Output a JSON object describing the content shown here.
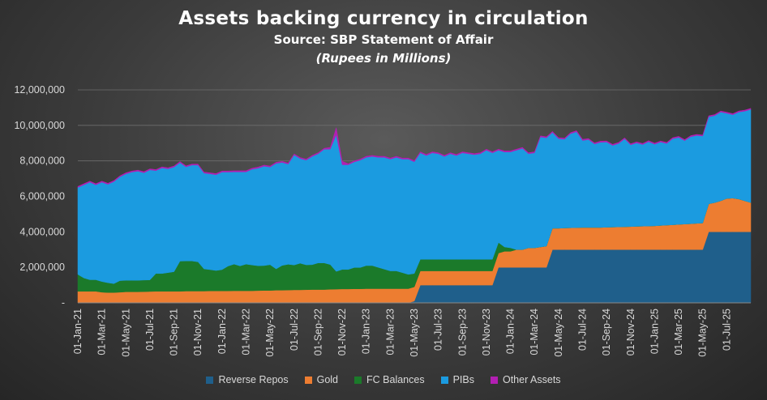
{
  "chart_data": {
    "type": "area",
    "stacked": true,
    "title": "Assets backing currency in circulation",
    "subtitle": "Source: SBP Statement of Affair",
    "unit_note": "(Rupees in Millions)",
    "ylim": [
      0,
      12000000
    ],
    "yticks": [
      0,
      2000000,
      4000000,
      6000000,
      8000000,
      10000000,
      12000000
    ],
    "ytick_labels": [
      "-",
      "2,000,000",
      "4,000,000",
      "6,000,000",
      "8,000,000",
      "10,000,000",
      "12,000,000"
    ],
    "x_range": [
      0,
      56
    ],
    "x_tick_labels": [
      "01-Jan-21",
      "01-Mar-21",
      "01-May-21",
      "01-Jul-21",
      "01-Sep-21",
      "01-Nov-21",
      "01-Jan-22",
      "01-Mar-22",
      "01-May-22",
      "01-Jul-22",
      "01-Sep-22",
      "01-Nov-22",
      "01-Jan-23",
      "01-Mar-23",
      "01-May-23",
      "01-Jul-23",
      "01-Sep-23",
      "01-Nov-23",
      "01-Jan-24",
      "01-Mar-24",
      "01-May-24",
      "01-Jul-24",
      "01-Sep-24",
      "01-Nov-24",
      "01-Jan-25",
      "01-Mar-25",
      "01-May-25",
      "01-Jul-25"
    ],
    "x": [
      0,
      0.5,
      1,
      1.5,
      2,
      2.5,
      3,
      3.5,
      4,
      4.5,
      5,
      5.5,
      6,
      6.5,
      7,
      7.5,
      8,
      8.5,
      9,
      9.5,
      10,
      10.5,
      11,
      11.5,
      12,
      12.5,
      13,
      13.5,
      14,
      14.5,
      15,
      15.5,
      16,
      16.5,
      17,
      17.5,
      18,
      18.5,
      19,
      19.5,
      20,
      20.5,
      21,
      21.5,
      22,
      22.5,
      23,
      23.5,
      24,
      24.5,
      25,
      25.5,
      26,
      26.5,
      27,
      27.5,
      28,
      28.5,
      29,
      29.5,
      30,
      30.5,
      31,
      31.5,
      32,
      32.5,
      33,
      33.5,
      34,
      34.5,
      35,
      35.5,
      36,
      36.5,
      37,
      37.5,
      38,
      38.5,
      39,
      39.5,
      40,
      40.5,
      41,
      41.5,
      42,
      42.5,
      43,
      43.5,
      44,
      44.5,
      45,
      45.5,
      46,
      46.5,
      47,
      47.5,
      48,
      48.5,
      49,
      49.5,
      50,
      50.5,
      51,
      51.5,
      52,
      52.5,
      53,
      53.5,
      54,
      54.5,
      55,
      55.5,
      56
    ],
    "series": [
      {
        "name": "Reverse Repos",
        "color": "#1f5f8b",
        "values": [
          0,
          0,
          0,
          0,
          0,
          0,
          0,
          0,
          0,
          0,
          0,
          0,
          0,
          0,
          0,
          0,
          0,
          0,
          0,
          0,
          0,
          0,
          0,
          0,
          0,
          0,
          0,
          0,
          0,
          0,
          0,
          0,
          0,
          0,
          0,
          0,
          0,
          0,
          0,
          0,
          0,
          0,
          0,
          0,
          0,
          0,
          0,
          0,
          0,
          0,
          0,
          0,
          0,
          0,
          0,
          0,
          100000,
          1000000,
          1000000,
          1000000,
          1000000,
          1000000,
          1000000,
          1000000,
          1000000,
          1000000,
          1000000,
          1000000,
          1000000,
          1000000,
          2000000,
          2000000,
          2000000,
          2000000,
          2000000,
          2000000,
          2000000,
          2000000,
          2000000,
          3000000,
          3000000,
          3000000,
          3000000,
          3000000,
          3000000,
          3000000,
          3000000,
          3000000,
          3000000,
          3000000,
          3000000,
          3000000,
          3000000,
          3000000,
          3000000,
          3000000,
          3000000,
          3000000,
          3000000,
          3000000,
          3000000,
          3000000,
          3000000,
          3000000,
          3000000,
          4000000,
          4000000,
          4000000,
          4000000,
          4000000,
          4000000,
          4000000,
          4000000
        ]
      },
      {
        "name": "Gold",
        "color": "#ed7d31",
        "values": [
          650000,
          650000,
          650000,
          650000,
          600000,
          580000,
          580000,
          600000,
          620000,
          620000,
          620000,
          630000,
          640000,
          650000,
          650000,
          650000,
          650000,
          650000,
          660000,
          660000,
          660000,
          660000,
          670000,
          670000,
          670000,
          670000,
          680000,
          680000,
          680000,
          680000,
          690000,
          700000,
          700000,
          710000,
          710000,
          720000,
          730000,
          730000,
          740000,
          750000,
          750000,
          750000,
          760000,
          770000,
          780000,
          780000,
          790000,
          790000,
          800000,
          800000,
          800000,
          800000,
          800000,
          800000,
          800000,
          800000,
          800000,
          800000,
          800000,
          800000,
          800000,
          800000,
          800000,
          800000,
          800000,
          800000,
          800000,
          800000,
          800000,
          800000,
          800000,
          900000,
          900000,
          1000000,
          1000000,
          1100000,
          1100000,
          1150000,
          1200000,
          1200000,
          1200000,
          1220000,
          1230000,
          1240000,
          1250000,
          1250000,
          1250000,
          1250000,
          1260000,
          1270000,
          1280000,
          1290000,
          1300000,
          1310000,
          1320000,
          1330000,
          1340000,
          1360000,
          1380000,
          1400000,
          1420000,
          1440000,
          1460000,
          1480000,
          1500000,
          1580000,
          1650000,
          1750000,
          1880000,
          1900000,
          1850000,
          1750000,
          1650000
        ]
      },
      {
        "name": "FC Balances",
        "color": "#1b7a2a",
        "values": [
          950000,
          750000,
          650000,
          650000,
          600000,
          550000,
          500000,
          650000,
          650000,
          650000,
          650000,
          650000,
          650000,
          1000000,
          1000000,
          1050000,
          1100000,
          1700000,
          1700000,
          1700000,
          1650000,
          1250000,
          1200000,
          1150000,
          1200000,
          1400000,
          1500000,
          1400000,
          1500000,
          1450000,
          1400000,
          1400000,
          1450000,
          1200000,
          1400000,
          1450000,
          1400000,
          1500000,
          1400000,
          1400000,
          1500000,
          1500000,
          1400000,
          1000000,
          1100000,
          1100000,
          1200000,
          1200000,
          1300000,
          1300000,
          1200000,
          1100000,
          1000000,
          1000000,
          900000,
          800000,
          750000,
          650000,
          650000,
          650000,
          650000,
          650000,
          650000,
          650000,
          650000,
          650000,
          650000,
          650000,
          650000,
          650000,
          600000,
          250000,
          200000,
          0,
          0,
          0,
          0,
          0,
          0,
          0,
          0,
          0,
          0,
          0,
          0,
          0,
          0,
          0,
          0,
          0,
          0,
          0,
          0,
          0,
          0,
          0,
          0,
          0,
          0,
          0,
          0,
          0,
          0,
          0,
          0,
          0,
          0,
          0,
          0,
          0,
          0,
          0,
          0
        ]
      },
      {
        "name": "PIBs",
        "color": "#1b9be0",
        "values": [
          4900000,
          5250000,
          5500000,
          5350000,
          5600000,
          5550000,
          5750000,
          5850000,
          6000000,
          6100000,
          6150000,
          6050000,
          6200000,
          5800000,
          5950000,
          5850000,
          5900000,
          5550000,
          5300000,
          5400000,
          5450000,
          5400000,
          5400000,
          5400000,
          5500000,
          5300000,
          5200000,
          5300000,
          5200000,
          5400000,
          5500000,
          5600000,
          5500000,
          5950000,
          5800000,
          5650000,
          6200000,
          5900000,
          5900000,
          6100000,
          6150000,
          6400000,
          6500000,
          7700000,
          5900000,
          5900000,
          5950000,
          6050000,
          6100000,
          6150000,
          6200000,
          6300000,
          6300000,
          6400000,
          6400000,
          6500000,
          6300000,
          6000000,
          5850000,
          6000000,
          5950000,
          5800000,
          5950000,
          5850000,
          6000000,
          5950000,
          5900000,
          5950000,
          6150000,
          6000000,
          5200000,
          5350000,
          5400000,
          5600000,
          5700000,
          5300000,
          5350000,
          6200000,
          6100000,
          5400000,
          5050000,
          5000000,
          5300000,
          5400000,
          4900000,
          4950000,
          4700000,
          4800000,
          4800000,
          4600000,
          4700000,
          4950000,
          4600000,
          4700000,
          4600000,
          4750000,
          4600000,
          4700000,
          4600000,
          4850000,
          4900000,
          4700000,
          4900000,
          4950000,
          4900000,
          4900000,
          4900000,
          5000000,
          4800000,
          4700000,
          4900000,
          5050000,
          5250000
        ]
      },
      {
        "name": "Other Assets",
        "color": "#b31fb3",
        "values": [
          60000,
          60000,
          60000,
          60000,
          60000,
          60000,
          60000,
          60000,
          60000,
          60000,
          60000,
          60000,
          60000,
          60000,
          60000,
          60000,
          60000,
          60000,
          60000,
          60000,
          60000,
          60000,
          60000,
          60000,
          60000,
          60000,
          60000,
          60000,
          60000,
          60000,
          60000,
          60000,
          60000,
          60000,
          60000,
          60000,
          60000,
          60000,
          60000,
          60000,
          60000,
          60000,
          100000,
          400000,
          200000,
          60000,
          60000,
          60000,
          60000,
          60000,
          60000,
          60000,
          60000,
          60000,
          60000,
          60000,
          60000,
          60000,
          60000,
          60000,
          60000,
          60000,
          60000,
          60000,
          60000,
          60000,
          60000,
          60000,
          60000,
          60000,
          60000,
          60000,
          60000,
          60000,
          60000,
          60000,
          60000,
          60000,
          60000,
          60000,
          60000,
          60000,
          60000,
          60000,
          60000,
          60000,
          60000,
          60000,
          60000,
          60000,
          60000,
          60000,
          60000,
          60000,
          60000,
          60000,
          60000,
          60000,
          60000,
          60000,
          60000,
          60000,
          60000,
          60000,
          60000,
          60000,
          60000,
          60000,
          60000,
          60000,
          60000,
          60000,
          60000
        ]
      }
    ],
    "legend": "bottom"
  }
}
